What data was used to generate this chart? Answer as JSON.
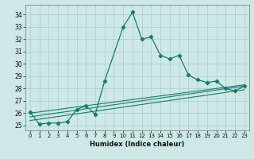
{
  "title": "",
  "xlabel": "Humidex (Indice chaleur)",
  "bg_color": "#cde8e5",
  "line_color": "#1a7a6e",
  "grid_color": "#aacfcc",
  "xlim": [
    -0.5,
    23.5
  ],
  "ylim": [
    24.6,
    34.8
  ],
  "yticks": [
    25,
    26,
    27,
    28,
    29,
    30,
    31,
    32,
    33,
    34
  ],
  "xticks": [
    0,
    1,
    2,
    3,
    4,
    5,
    6,
    7,
    8,
    9,
    10,
    11,
    12,
    13,
    14,
    15,
    16,
    17,
    18,
    19,
    20,
    21,
    22,
    23
  ],
  "series1_x": [
    0,
    1,
    2,
    3,
    4,
    5,
    6,
    7,
    8,
    10,
    11,
    12,
    13,
    14,
    15,
    16,
    17,
    18,
    19,
    20,
    21,
    22,
    23
  ],
  "series1_y": [
    26.1,
    25.1,
    25.2,
    25.2,
    25.3,
    26.3,
    26.6,
    25.9,
    28.6,
    33.0,
    34.2,
    32.0,
    32.2,
    30.7,
    30.4,
    30.7,
    29.1,
    28.7,
    28.5,
    28.6,
    28.0,
    27.8,
    28.2
  ],
  "line1_x": [
    0,
    23
  ],
  "line1_y": [
    25.4,
    27.9
  ],
  "line2_x": [
    0,
    23
  ],
  "line2_y": [
    25.7,
    28.2
  ],
  "line3_x": [
    0,
    23
  ],
  "line3_y": [
    26.0,
    28.3
  ]
}
